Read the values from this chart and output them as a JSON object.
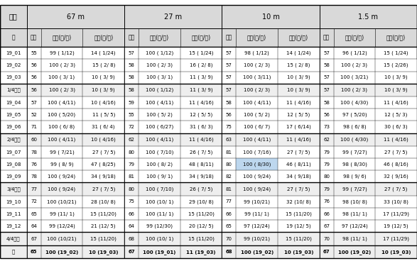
{
  "title_groups": [
    [
      0,
      1,
      "높이"
    ],
    [
      1,
      4,
      "67 m"
    ],
    [
      4,
      7,
      "27 m"
    ],
    [
      7,
      10,
      "10 m"
    ],
    [
      10,
      13,
      "1.5 m"
    ]
  ],
  "header_row": [
    "월",
    "평균",
    "최고(월/일)",
    "최저(월/일)",
    "평균",
    "최고(월/일)",
    "최저(월/일)",
    "평균",
    "최고(월/일)",
    "최저(월/일)",
    "평균",
    "최고(월/일)",
    "최저(월/일)"
  ],
  "rows": [
    [
      "19_01",
      "55",
      "99 ( 1/12)",
      "14 ( 1/24)",
      "57",
      "100 ( 1/12)",
      "15 ( 1/24)",
      "57",
      "98 ( 1/12)",
      "14 ( 1/24)",
      "57",
      "96 ( 1/12)",
      "15 ( 1/24)"
    ],
    [
      "19_02",
      "56",
      "100 ( 2/ 3)",
      "15 ( 2/ 8)",
      "58",
      "100 ( 2/ 3)",
      "16 ( 2/ 8)",
      "57",
      "100 ( 2/ 3)",
      "15 ( 2/ 8)",
      "58",
      "100 ( 2/ 3)",
      "15 ( 2/26)"
    ],
    [
      "19_03",
      "56",
      "100 ( 3/ 1)",
      "10 ( 3/ 9)",
      "58",
      "100 ( 3/ 1)",
      "11 ( 3/ 9)",
      "57",
      "100 ( 3/11)",
      "10 ( 3/ 9)",
      "57",
      "100 ( 3/21)",
      "10 ( 3/ 9)"
    ],
    [
      "1/4분기",
      "56",
      "100 ( 2/ 3)",
      "10 ( 3/ 9)",
      "58",
      "100 ( 1/12)",
      "11 ( 3/ 9)",
      "57",
      "100 ( 2/ 3)",
      "10 ( 3/ 9)",
      "57",
      "100 ( 2/ 3)",
      "10 ( 3/ 9)"
    ],
    [
      "19_04",
      "57",
      "100 ( 4/11)",
      "10 ( 4/16)",
      "59",
      "100 ( 4/11)",
      "11 ( 4/16)",
      "58",
      "100 ( 4/11)",
      "11 ( 4/16)",
      "58",
      "100 ( 4/30)",
      "11 ( 4/16)"
    ],
    [
      "19_05",
      "52",
      "100 ( 5/20)",
      "11 ( 5/ 5)",
      "55",
      "100 ( 5/ 2)",
      "12 ( 5/ 5)",
      "56",
      "100 ( 5/ 2)",
      "12 ( 5/ 5)",
      "56",
      "97 ( 5/20)",
      "12 ( 5/ 3)"
    ],
    [
      "19_06",
      "71",
      "100 ( 6/ 8)",
      "31 ( 6/ 4)",
      "72",
      "100 ( 6/27)",
      "31 ( 6/ 3)",
      "75",
      "100 ( 6/ 7)",
      "17 ( 6/14)",
      "73",
      "98 ( 6/ 8)",
      "30 ( 6/ 3)"
    ],
    [
      "2/4분기",
      "60",
      "100 ( 4/11)",
      "10 ( 4/16)",
      "62",
      "100 ( 4/11)",
      "11 ( 4/16)",
      "63",
      "100 ( 4/11)",
      "11 ( 4/16)",
      "62",
      "100 ( 4/30)",
      "11 ( 4/16)"
    ],
    [
      "19_07",
      "78",
      "99 ( 7/21)",
      "27 ( 7/ 5)",
      "80",
      "100 ( 7/10)",
      "26 ( 7/ 5)",
      "81",
      "100 ( 7/16)",
      "27 ( 7/ 5)",
      "79",
      "99 ( 7/27)",
      "27 ( 7/ 5)"
    ],
    [
      "19_08",
      "76",
      "99 ( 8/ 9)",
      "47 ( 8/25)",
      "79",
      "100 ( 8/ 2)",
      "48 ( 8/11)",
      "80",
      "100 ( 8/30)",
      "46 ( 8/11)",
      "79",
      "98 ( 8/30)",
      "46 ( 8/16)"
    ],
    [
      "19_09",
      "78",
      "100 ( 9/24)",
      "34 ( 9/18)",
      "81",
      "100 ( 9/ 1)",
      "34 ( 9/18)",
      "82",
      "100 ( 9/24)",
      "34 ( 9/18)",
      "80",
      "98 ( 9/ 6)",
      "32 ( 9/16)"
    ],
    [
      "3/4분기",
      "77",
      "100 ( 9/24)",
      "27 ( 7/ 5)",
      "80",
      "100 ( 7/10)",
      "26 ( 7/ 5)",
      "81",
      "100 ( 9/24)",
      "27 ( 7/ 5)",
      "79",
      "99 ( 7/27)",
      "27 ( 7/ 5)"
    ],
    [
      "19_10",
      "72",
      "100 (10/21)",
      "28 (10/ 8)",
      "75",
      "100 (10/ 1)",
      "29 (10/ 8)",
      "77",
      "99 (10/21)",
      "32 (10/ 8)",
      "76",
      "98 (10/ 8)",
      "33 (10/ 8)"
    ],
    [
      "19_11",
      "65",
      "99 (11/ 1)",
      "15 (11/20)",
      "66",
      "100 (11/ 1)",
      "15 (11/20)",
      "66",
      "99 (11/ 1)",
      "15 (11/20)",
      "66",
      "98 (11/ 1)",
      "17 (11/29)"
    ],
    [
      "19_12",
      "64",
      "99 (12/24)",
      "21 (12/ 5)",
      "64",
      "99 (12/30)",
      "20 (12/ 5)",
      "65",
      "97 (12/24)",
      "19 (12/ 5)",
      "67",
      "97 (12/24)",
      "19 (12/ 5)"
    ],
    [
      "4/4분기",
      "67",
      "100 (10/21)",
      "15 (11/20)",
      "68",
      "100 (10/ 1)",
      "15 (11/20)",
      "70",
      "99 (10/21)",
      "15 (11/20)",
      "70",
      "98 (11/ 1)",
      "17 (11/29)"
    ],
    [
      "년",
      "65",
      "100 (19_02)",
      "10 (19_03)",
      "67",
      "100 (19_01)",
      "11 (19_03)",
      "68",
      "100 (19_02)",
      "10 (19_03)",
      "67",
      "100 (19_02)",
      "10 (19_03)"
    ]
  ],
  "quarter_indices": [
    3,
    7,
    11,
    15
  ],
  "year_index": 16,
  "col_widths": [
    0.72,
    0.38,
    1.12,
    1.12,
    0.38,
    1.12,
    1.12,
    0.38,
    1.12,
    1.12,
    0.38,
    1.12,
    1.12
  ],
  "bg_color_header": "#d9d9d9",
  "bg_color_quarter": "#eeeeee",
  "bg_color_normal": "#ffffff",
  "highlight_cell": [
    9,
    8
  ],
  "highlight_color": "#bdd7ee",
  "fs_title": 7.0,
  "fs_header": 5.5,
  "fs_data": 5.0,
  "fs_quarter": 5.0
}
